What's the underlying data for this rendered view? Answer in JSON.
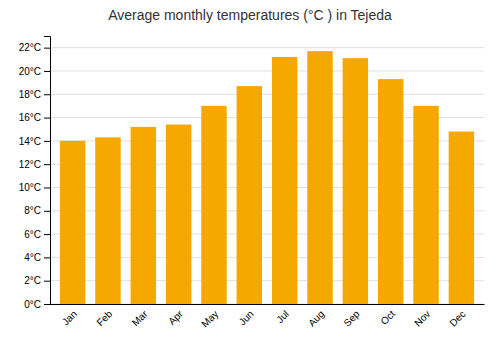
{
  "chart_data": {
    "type": "bar",
    "title": "Average monthly temperatures (°C ) in Tejeda",
    "categories": [
      "Jan",
      "Feb",
      "Mar",
      "Apr",
      "May",
      "Jun",
      "Jul",
      "Aug",
      "Sep",
      "Oct",
      "Nov",
      "Dec"
    ],
    "values": [
      14.0,
      14.3,
      15.2,
      15.4,
      17.0,
      18.7,
      21.2,
      21.7,
      21.1,
      19.3,
      17.0,
      14.8
    ],
    "color": "#F5A800",
    "ylim": [
      0,
      23
    ],
    "yticks": [
      {
        "value": 0,
        "label": "0°C"
      },
      {
        "value": 2,
        "label": "2°C"
      },
      {
        "value": 4,
        "label": "4°C"
      },
      {
        "value": 6,
        "label": "6°C"
      },
      {
        "value": 8,
        "label": "8°C"
      },
      {
        "value": 10,
        "label": "10°C"
      },
      {
        "value": 12,
        "label": "12°C"
      },
      {
        "value": 14,
        "label": "14°C"
      },
      {
        "value": 16,
        "label": "16°C"
      },
      {
        "value": 18,
        "label": "18°C"
      },
      {
        "value": 20,
        "label": "20°C"
      },
      {
        "value": 22,
        "label": "22°C"
      }
    ],
    "grid": true
  }
}
